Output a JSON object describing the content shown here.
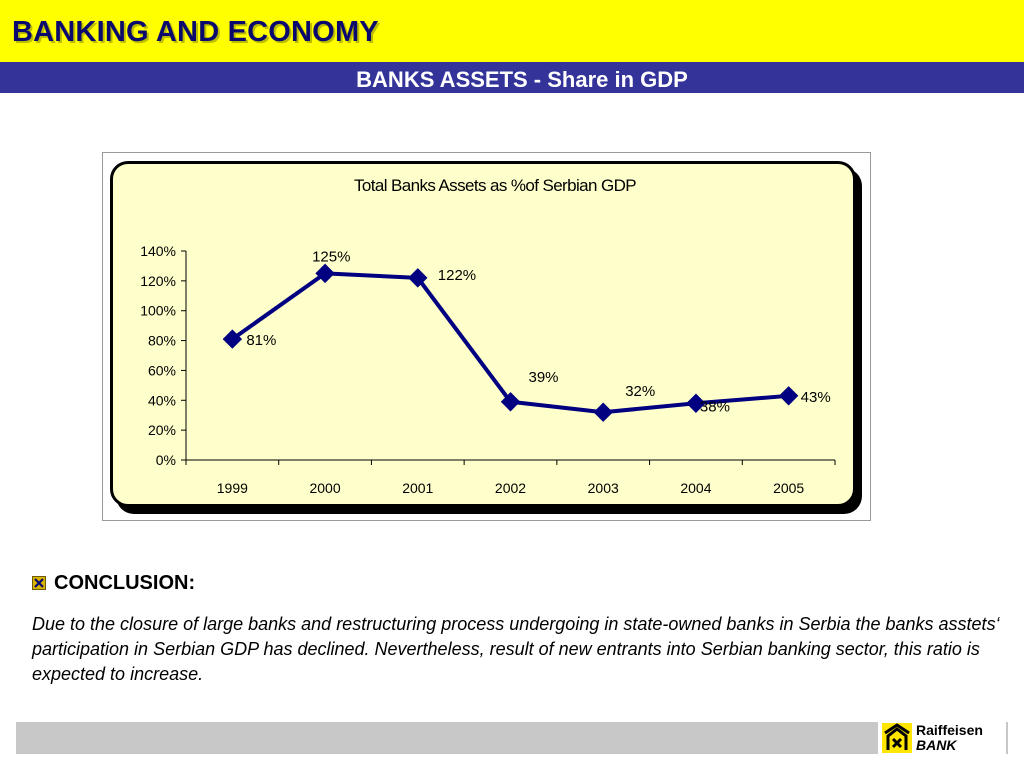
{
  "header": {
    "title": "BANKING AND ECONOMY",
    "subtitle": "BANKS ASSETS - Share in GDP"
  },
  "colors": {
    "header_yellow": "#ffff00",
    "subheader_blue": "#33339a",
    "series_navy": "#000080",
    "panel_cream": "#ffffcc",
    "footer_gray": "#c8c8c8"
  },
  "chart_data": {
    "type": "line",
    "title": "Total Banks Assets as %of Serbian GDP",
    "xlabel": "",
    "ylabel": "",
    "categories": [
      "1999",
      "2000",
      "2001",
      "2002",
      "2003",
      "2004",
      "2005"
    ],
    "series": [
      {
        "values": [
          81,
          125,
          122,
          39,
          32,
          38,
          43
        ],
        "color": "#000080",
        "marker": "diamond"
      }
    ],
    "data_labels": [
      "81%",
      "125%",
      "122%",
      "39%",
      "32%",
      "38%",
      "43%"
    ],
    "ylim": [
      0,
      140
    ],
    "yticks": [
      0,
      20,
      40,
      60,
      80,
      100,
      120,
      140
    ],
    "ytick_labels": [
      "0%",
      "20%",
      "40%",
      "60%",
      "80%",
      "100%",
      "120%",
      "140%"
    ],
    "grid": false,
    "legend": "none"
  },
  "conclusion": {
    "icon": "checkbox-icon",
    "heading": "CONCLUSION:",
    "text": "Due to the closure of large banks and restructuring process undergoing in state-owned banks in Serbia the banks asstets‘ participation in Serbian GDP has declined. Nevertheless, result of new entrants into Serbian banking sector, this ratio is expected to increase."
  },
  "footer": {
    "logo_icon": "raiffeisen-gable-cross-icon",
    "logo_line1": "Raiffeisen",
    "logo_line2": "BANK"
  }
}
